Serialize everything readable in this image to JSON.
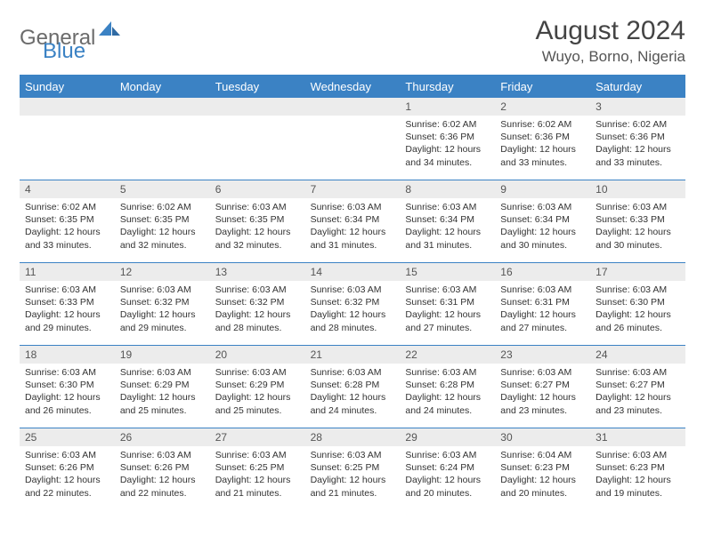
{
  "brand": {
    "word1": "General",
    "word2": "Blue",
    "logo_color": "#3b82c4",
    "text_color": "#6b6b6b"
  },
  "header": {
    "title": "August 2024",
    "location": "Wuyo, Borno, Nigeria"
  },
  "colors": {
    "accent": "#3b82c4",
    "daynum_bg": "#ececec",
    "text": "#333333",
    "bg": "#ffffff"
  },
  "weekdays": [
    "Sunday",
    "Monday",
    "Tuesday",
    "Wednesday",
    "Thursday",
    "Friday",
    "Saturday"
  ],
  "weeks": [
    [
      {
        "num": "",
        "sunrise": "",
        "sunset": "",
        "daylight": ""
      },
      {
        "num": "",
        "sunrise": "",
        "sunset": "",
        "daylight": ""
      },
      {
        "num": "",
        "sunrise": "",
        "sunset": "",
        "daylight": ""
      },
      {
        "num": "",
        "sunrise": "",
        "sunset": "",
        "daylight": ""
      },
      {
        "num": "1",
        "sunrise": "Sunrise: 6:02 AM",
        "sunset": "Sunset: 6:36 PM",
        "daylight": "Daylight: 12 hours and 34 minutes."
      },
      {
        "num": "2",
        "sunrise": "Sunrise: 6:02 AM",
        "sunset": "Sunset: 6:36 PM",
        "daylight": "Daylight: 12 hours and 33 minutes."
      },
      {
        "num": "3",
        "sunrise": "Sunrise: 6:02 AM",
        "sunset": "Sunset: 6:36 PM",
        "daylight": "Daylight: 12 hours and 33 minutes."
      }
    ],
    [
      {
        "num": "4",
        "sunrise": "Sunrise: 6:02 AM",
        "sunset": "Sunset: 6:35 PM",
        "daylight": "Daylight: 12 hours and 33 minutes."
      },
      {
        "num": "5",
        "sunrise": "Sunrise: 6:02 AM",
        "sunset": "Sunset: 6:35 PM",
        "daylight": "Daylight: 12 hours and 32 minutes."
      },
      {
        "num": "6",
        "sunrise": "Sunrise: 6:03 AM",
        "sunset": "Sunset: 6:35 PM",
        "daylight": "Daylight: 12 hours and 32 minutes."
      },
      {
        "num": "7",
        "sunrise": "Sunrise: 6:03 AM",
        "sunset": "Sunset: 6:34 PM",
        "daylight": "Daylight: 12 hours and 31 minutes."
      },
      {
        "num": "8",
        "sunrise": "Sunrise: 6:03 AM",
        "sunset": "Sunset: 6:34 PM",
        "daylight": "Daylight: 12 hours and 31 minutes."
      },
      {
        "num": "9",
        "sunrise": "Sunrise: 6:03 AM",
        "sunset": "Sunset: 6:34 PM",
        "daylight": "Daylight: 12 hours and 30 minutes."
      },
      {
        "num": "10",
        "sunrise": "Sunrise: 6:03 AM",
        "sunset": "Sunset: 6:33 PM",
        "daylight": "Daylight: 12 hours and 30 minutes."
      }
    ],
    [
      {
        "num": "11",
        "sunrise": "Sunrise: 6:03 AM",
        "sunset": "Sunset: 6:33 PM",
        "daylight": "Daylight: 12 hours and 29 minutes."
      },
      {
        "num": "12",
        "sunrise": "Sunrise: 6:03 AM",
        "sunset": "Sunset: 6:32 PM",
        "daylight": "Daylight: 12 hours and 29 minutes."
      },
      {
        "num": "13",
        "sunrise": "Sunrise: 6:03 AM",
        "sunset": "Sunset: 6:32 PM",
        "daylight": "Daylight: 12 hours and 28 minutes."
      },
      {
        "num": "14",
        "sunrise": "Sunrise: 6:03 AM",
        "sunset": "Sunset: 6:32 PM",
        "daylight": "Daylight: 12 hours and 28 minutes."
      },
      {
        "num": "15",
        "sunrise": "Sunrise: 6:03 AM",
        "sunset": "Sunset: 6:31 PM",
        "daylight": "Daylight: 12 hours and 27 minutes."
      },
      {
        "num": "16",
        "sunrise": "Sunrise: 6:03 AM",
        "sunset": "Sunset: 6:31 PM",
        "daylight": "Daylight: 12 hours and 27 minutes."
      },
      {
        "num": "17",
        "sunrise": "Sunrise: 6:03 AM",
        "sunset": "Sunset: 6:30 PM",
        "daylight": "Daylight: 12 hours and 26 minutes."
      }
    ],
    [
      {
        "num": "18",
        "sunrise": "Sunrise: 6:03 AM",
        "sunset": "Sunset: 6:30 PM",
        "daylight": "Daylight: 12 hours and 26 minutes."
      },
      {
        "num": "19",
        "sunrise": "Sunrise: 6:03 AM",
        "sunset": "Sunset: 6:29 PM",
        "daylight": "Daylight: 12 hours and 25 minutes."
      },
      {
        "num": "20",
        "sunrise": "Sunrise: 6:03 AM",
        "sunset": "Sunset: 6:29 PM",
        "daylight": "Daylight: 12 hours and 25 minutes."
      },
      {
        "num": "21",
        "sunrise": "Sunrise: 6:03 AM",
        "sunset": "Sunset: 6:28 PM",
        "daylight": "Daylight: 12 hours and 24 minutes."
      },
      {
        "num": "22",
        "sunrise": "Sunrise: 6:03 AM",
        "sunset": "Sunset: 6:28 PM",
        "daylight": "Daylight: 12 hours and 24 minutes."
      },
      {
        "num": "23",
        "sunrise": "Sunrise: 6:03 AM",
        "sunset": "Sunset: 6:27 PM",
        "daylight": "Daylight: 12 hours and 23 minutes."
      },
      {
        "num": "24",
        "sunrise": "Sunrise: 6:03 AM",
        "sunset": "Sunset: 6:27 PM",
        "daylight": "Daylight: 12 hours and 23 minutes."
      }
    ],
    [
      {
        "num": "25",
        "sunrise": "Sunrise: 6:03 AM",
        "sunset": "Sunset: 6:26 PM",
        "daylight": "Daylight: 12 hours and 22 minutes."
      },
      {
        "num": "26",
        "sunrise": "Sunrise: 6:03 AM",
        "sunset": "Sunset: 6:26 PM",
        "daylight": "Daylight: 12 hours and 22 minutes."
      },
      {
        "num": "27",
        "sunrise": "Sunrise: 6:03 AM",
        "sunset": "Sunset: 6:25 PM",
        "daylight": "Daylight: 12 hours and 21 minutes."
      },
      {
        "num": "28",
        "sunrise": "Sunrise: 6:03 AM",
        "sunset": "Sunset: 6:25 PM",
        "daylight": "Daylight: 12 hours and 21 minutes."
      },
      {
        "num": "29",
        "sunrise": "Sunrise: 6:03 AM",
        "sunset": "Sunset: 6:24 PM",
        "daylight": "Daylight: 12 hours and 20 minutes."
      },
      {
        "num": "30",
        "sunrise": "Sunrise: 6:04 AM",
        "sunset": "Sunset: 6:23 PM",
        "daylight": "Daylight: 12 hours and 20 minutes."
      },
      {
        "num": "31",
        "sunrise": "Sunrise: 6:03 AM",
        "sunset": "Sunset: 6:23 PM",
        "daylight": "Daylight: 12 hours and 19 minutes."
      }
    ]
  ]
}
